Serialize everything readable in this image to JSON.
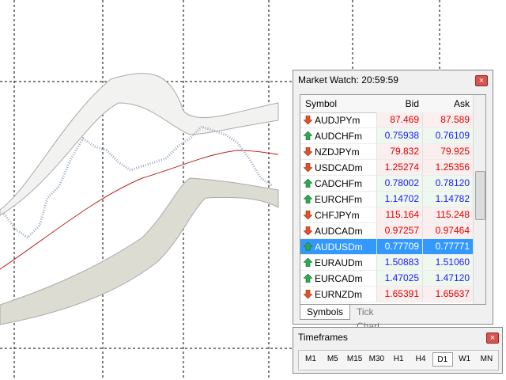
{
  "market_watch": {
    "title": "Market Watch: 20:59:59",
    "columns": [
      "Symbol",
      "Bid",
      "Ask"
    ],
    "rows": [
      {
        "symbol": "AUDJPYm",
        "bid": "87.469",
        "ask": "87.589",
        "direction": "down"
      },
      {
        "symbol": "AUDCHFm",
        "bid": "0.75938",
        "ask": "0.76109",
        "direction": "up"
      },
      {
        "symbol": "NZDJPYm",
        "bid": "79.832",
        "ask": "79.925",
        "direction": "down"
      },
      {
        "symbol": "USDCADm",
        "bid": "1.25274",
        "ask": "1.25356",
        "direction": "down"
      },
      {
        "symbol": "CADCHFm",
        "bid": "0.78002",
        "ask": "0.78120",
        "direction": "up"
      },
      {
        "symbol": "EURCHFm",
        "bid": "1.14702",
        "ask": "1.14782",
        "direction": "up"
      },
      {
        "symbol": "CHFJPYm",
        "bid": "115.164",
        "ask": "115.248",
        "direction": "down"
      },
      {
        "symbol": "AUDCADm",
        "bid": "0.97257",
        "ask": "0.97464",
        "direction": "down"
      },
      {
        "symbol": "AUDUSDm",
        "bid": "0.77709",
        "ask": "0.77771",
        "direction": "up"
      },
      {
        "symbol": "EURAUDm",
        "bid": "1.50883",
        "ask": "1.51060",
        "direction": "up"
      },
      {
        "symbol": "EURCADm",
        "bid": "1.47025",
        "ask": "1.47120",
        "direction": "up"
      },
      {
        "symbol": "EURNZDm",
        "bid": "1.65391",
        "ask": "1.65637",
        "direction": "down"
      }
    ],
    "selected_row": 8,
    "tabs": [
      "Symbols",
      "Tick Chart"
    ],
    "active_tab": 0
  },
  "timeframes": {
    "title": "Timeframes",
    "buttons": [
      "M1",
      "M5",
      "M15",
      "M30",
      "H1",
      "H4",
      "D1",
      "W1",
      "MN"
    ],
    "active": 6
  }
}
